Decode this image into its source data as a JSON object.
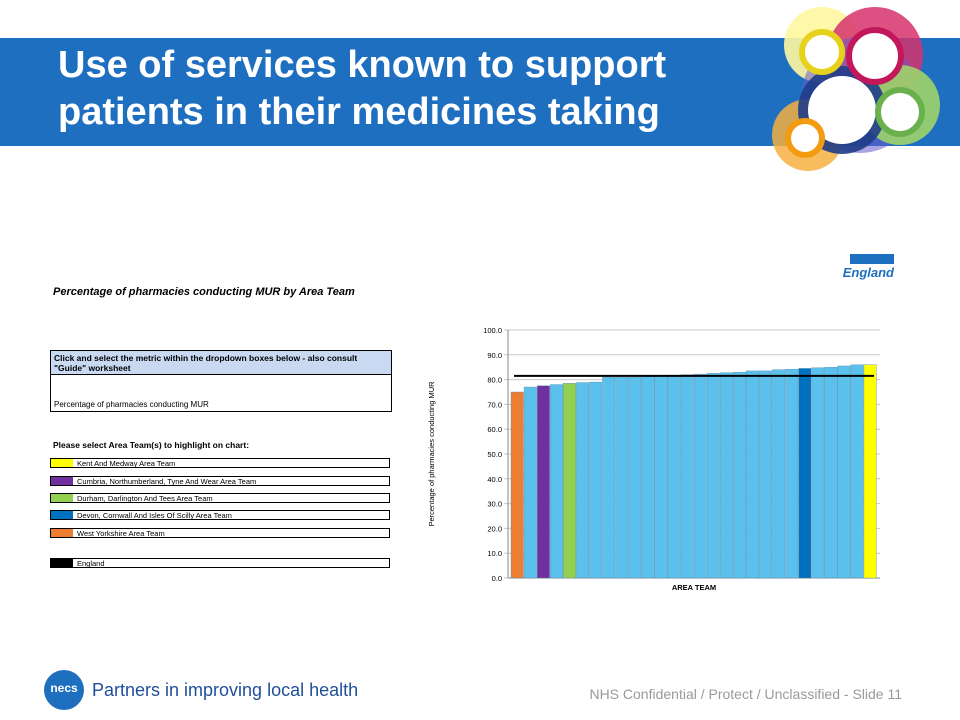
{
  "slide": {
    "title_line1": "Use of services known to support",
    "title_line2": "patients in their medicines taking",
    "tagline": "Partners in improving local health",
    "footer_text": "NHS Confidential / Protect / Unclassified - Slide 11",
    "logo_text": "necs",
    "nhs_logo_word": "England",
    "accent_color": "#1f6fc1"
  },
  "left_panel": {
    "title": "Percentage of pharmacies conducting MUR by Area Team",
    "instruction": "Click and select the metric within the dropdown boxes below - also consult \"Guide\" worksheet",
    "selected_metric": "Percentage of pharmacies conducting MUR",
    "select_label": "Please select Area Team(s) to highlight on chart:",
    "legend": [
      {
        "label": "Kent And Medway Area Team",
        "color": "#ffff00"
      },
      {
        "label": "Cumbria, Northumberland, Tyne And Wear Area Team",
        "color": "#7030a0"
      },
      {
        "label": "Durham, Darlington And Tees Area Team",
        "color": "#92d050"
      },
      {
        "label": "Devon, Cornwall And Isles Of Scilly Area Team",
        "color": "#0070c0"
      },
      {
        "label": "West Yorkshire Area Team",
        "color": "#ed7d31"
      },
      {
        "label": "England",
        "color": "#000000"
      }
    ]
  },
  "chart_data": {
    "type": "bar",
    "ylabel": "Percentage of pharmacies conducting MUR",
    "xlabel": "AREA TEAM",
    "ylim": [
      0,
      100
    ],
    "yticks": [
      "0.0",
      "10.0",
      "20.0",
      "30.0",
      "40.0",
      "50.0",
      "60.0",
      "70.0",
      "80.0",
      "90.0",
      "100.0"
    ],
    "grid": true,
    "values": [
      75.0,
      77.0,
      77.5,
      78.0,
      78.5,
      78.8,
      79.0,
      81.0,
      81.0,
      81.0,
      81.2,
      81.5,
      81.8,
      82.0,
      82.2,
      82.5,
      82.8,
      83.0,
      83.5,
      83.5,
      84.0,
      84.2,
      84.5,
      84.8,
      85.0,
      85.5,
      86.0,
      86.0
    ],
    "colors": [
      "#ed7d31",
      "#5bc0eb",
      "#7030a0",
      "#5bc0eb",
      "#92d050",
      "#5bc0eb",
      "#5bc0eb",
      "#5bc0eb",
      "#5bc0eb",
      "#5bc0eb",
      "#5bc0eb",
      "#5bc0eb",
      "#5bc0eb",
      "#5bc0eb",
      "#5bc0eb",
      "#5bc0eb",
      "#5bc0eb",
      "#5bc0eb",
      "#5bc0eb",
      "#5bc0eb",
      "#5bc0eb",
      "#5bc0eb",
      "#0070c0",
      "#5bc0eb",
      "#5bc0eb",
      "#5bc0eb",
      "#5bc0eb",
      "#ffff00"
    ],
    "reference_line": {
      "value": 81.5,
      "color": "#000000"
    }
  }
}
